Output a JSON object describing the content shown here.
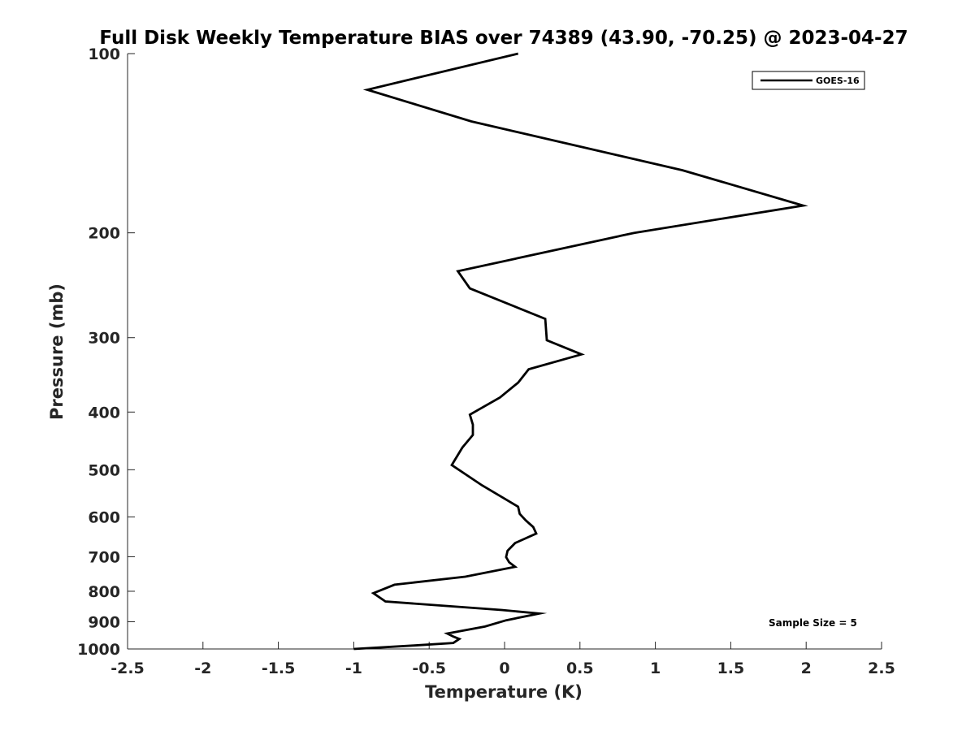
{
  "chart_data": {
    "type": "line",
    "title": "Full Disk Weekly Temperature BIAS over 74389 (43.90, -70.25) @ 2023-04-27",
    "xlabel": "Temperature (K)",
    "ylabel": "Pressure (mb)",
    "xlim": [
      -2.5,
      2.5
    ],
    "ylim": [
      100,
      1000
    ],
    "y_scale": "log",
    "y_direction": "reversed",
    "xticks": [
      -2.5,
      -2,
      -1.5,
      -1,
      -0.5,
      0,
      0.5,
      1,
      1.5,
      2,
      2.5
    ],
    "xtick_labels": [
      "-2.5",
      "-2",
      "-1.5",
      "-1",
      "-0.5",
      "0",
      "0.5",
      "1",
      "1.5",
      "2",
      "2.5"
    ],
    "yticks": [
      100,
      200,
      300,
      400,
      500,
      600,
      700,
      800,
      900,
      1000
    ],
    "ytick_labels": [
      "100",
      "200",
      "300",
      "400",
      "500",
      "600",
      "700",
      "800",
      "900",
      "1000"
    ],
    "grid": false,
    "legend_position": "top-right",
    "series": [
      {
        "name": "GOES-16",
        "color": "#000000",
        "x": [
          0.09,
          -0.91,
          -0.22,
          1.18,
          1.98,
          0.86,
          -0.31,
          -0.23,
          0.27,
          0.28,
          0.51,
          0.16,
          0.09,
          -0.03,
          -0.23,
          -0.21,
          -0.21,
          -0.28,
          -0.35,
          -0.15,
          0.0,
          0.09,
          0.1,
          0.14,
          0.19,
          0.21,
          0.07,
          0.02,
          0.01,
          0.03,
          0.07,
          -0.26,
          -0.73,
          -0.87,
          -0.79,
          -0.02,
          0.23,
          0.01,
          -0.13,
          -0.38,
          -0.34,
          -0.3,
          -0.34,
          -0.61,
          -1.0
        ],
        "y": [
          100,
          115,
          130,
          157,
          180,
          200,
          232,
          248,
          279,
          303,
          320,
          339,
          357,
          378,
          404,
          420,
          437,
          459,
          491,
          531,
          559,
          577,
          593,
          608,
          624,
          640,
          664,
          684,
          701,
          715,
          728,
          756,
          780,
          806,
          832,
          860,
          872,
          895,
          917,
          942,
          953,
          962,
          977,
          987,
          1000
        ]
      }
    ],
    "annotations": [
      "Sample Size = 5"
    ]
  }
}
